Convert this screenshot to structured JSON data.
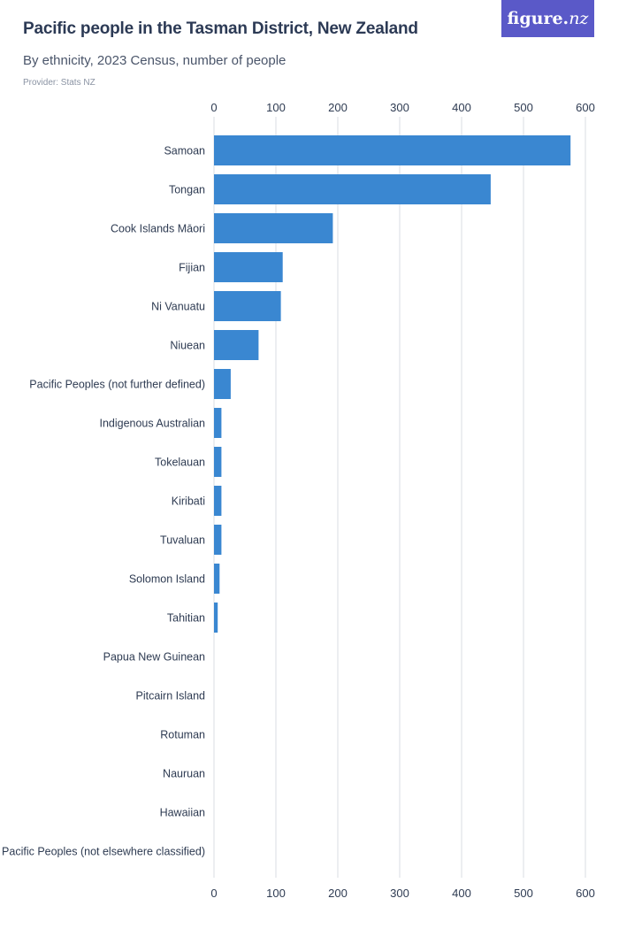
{
  "header": {
    "title": "Pacific people in the Tasman District, New Zealand",
    "subtitle": "By ethnicity, 2023 Census, number of people",
    "provider": "Provider: Stats NZ",
    "logo_main": "figure.",
    "logo_accent": "nz"
  },
  "colors": {
    "bar": "#3a87d1",
    "grid": "#d9dde3",
    "logo_bg": "#5a59c8"
  },
  "chart_data": {
    "type": "bar",
    "orientation": "horizontal",
    "title": "Pacific people in the Tasman District, New Zealand",
    "subtitle": "By ethnicity, 2023 Census, number of people",
    "categories": [
      "Samoan",
      "Tongan",
      "Cook Islands Māori",
      "Fijian",
      "Ni Vanuatu",
      "Niuean",
      "Pacific Peoples (not further defined)",
      "Indigenous Australian",
      "Tokelauan",
      "Kiribati",
      "Tuvaluan",
      "Solomon Island",
      "Tahitian",
      "Papua New Guinean",
      "Pitcairn Island",
      "Rotuman",
      "Nauruan",
      "Hawaiian",
      "Pacific Peoples (not elsewhere classified)"
    ],
    "values": [
      576,
      447,
      192,
      111,
      108,
      72,
      27,
      12,
      12,
      12,
      12,
      9,
      6,
      0,
      0,
      0,
      0,
      0,
      0
    ],
    "xlim": [
      0,
      600
    ],
    "xticks": [
      0,
      100,
      200,
      300,
      400,
      500,
      600
    ],
    "axis_position": "top-and-bottom",
    "grid": true,
    "legend": "none"
  }
}
